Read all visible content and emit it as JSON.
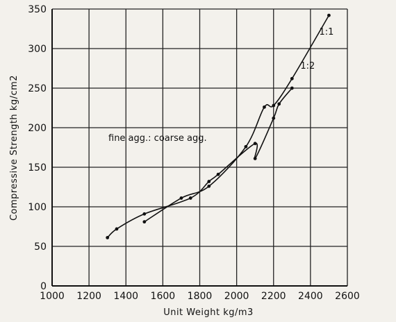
{
  "chart_data": {
    "type": "line",
    "title": "",
    "xlabel": "Unit Weight kg/m3",
    "ylabel": "Compressive Strength kg/cm2",
    "xlim": [
      1000,
      2600
    ],
    "ylim": [
      0,
      350
    ],
    "xticks": [
      1000,
      1200,
      1400,
      1600,
      1800,
      2000,
      2200,
      2400,
      2600
    ],
    "yticks": [
      0,
      50,
      100,
      150,
      200,
      250,
      300,
      350
    ],
    "grid": true,
    "annotation": "fine agg.: coarse agg.",
    "series": [
      {
        "name": "1:1",
        "points": [
          [
            1500,
            81
          ],
          [
            1700,
            111
          ],
          [
            1850,
            126
          ],
          [
            2050,
            176
          ],
          [
            2150,
            226
          ],
          [
            2200,
            228
          ],
          [
            2300,
            262
          ],
          [
            2500,
            342
          ]
        ]
      },
      {
        "name": "1:2",
        "points": [
          [
            1300,
            61
          ],
          [
            1350,
            72
          ],
          [
            1500,
            91
          ],
          [
            1750,
            111
          ],
          [
            1850,
            132
          ],
          [
            1900,
            141
          ],
          [
            2100,
            180
          ],
          [
            2100,
            161
          ],
          [
            2200,
            212
          ],
          [
            2230,
            230
          ],
          [
            2300,
            250
          ]
        ]
      }
    ],
    "colors": {
      "line": "#111111",
      "grid": "#222222",
      "background": "#f3f1ec"
    }
  }
}
